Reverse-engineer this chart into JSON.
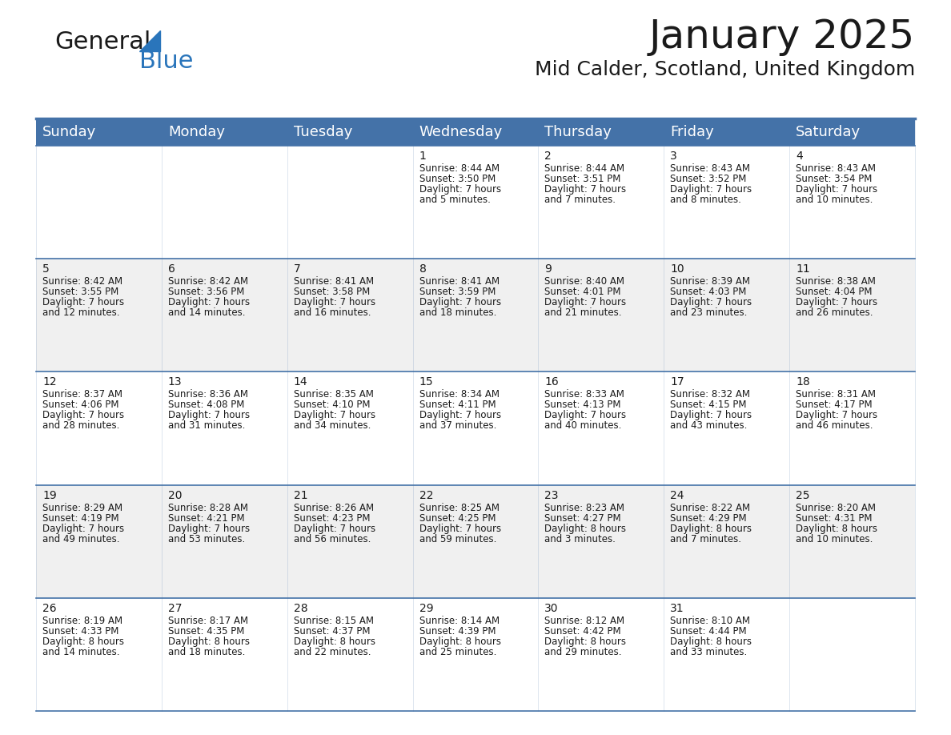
{
  "title": "January 2025",
  "subtitle": "Mid Calder, Scotland, United Kingdom",
  "header_color": "#4472a8",
  "header_text_color": "#ffffff",
  "bg_color": "#ffffff",
  "alt_row_color": "#f0f0f0",
  "grid_line_color": "#4472a8",
  "day_names": [
    "Sunday",
    "Monday",
    "Tuesday",
    "Wednesday",
    "Thursday",
    "Friday",
    "Saturday"
  ],
  "title_fontsize": 36,
  "subtitle_fontsize": 18,
  "header_fontsize": 13,
  "cell_fontsize": 8.5,
  "day_num_fontsize": 10,
  "weeks": [
    [
      {
        "day": "",
        "sunrise": "",
        "sunset": "",
        "daylight": ""
      },
      {
        "day": "",
        "sunrise": "",
        "sunset": "",
        "daylight": ""
      },
      {
        "day": "",
        "sunrise": "",
        "sunset": "",
        "daylight": ""
      },
      {
        "day": "1",
        "sunrise": "Sunrise: 8:44 AM",
        "sunset": "Sunset: 3:50 PM",
        "daylight": "Daylight: 7 hours\nand 5 minutes."
      },
      {
        "day": "2",
        "sunrise": "Sunrise: 8:44 AM",
        "sunset": "Sunset: 3:51 PM",
        "daylight": "Daylight: 7 hours\nand 7 minutes."
      },
      {
        "day": "3",
        "sunrise": "Sunrise: 8:43 AM",
        "sunset": "Sunset: 3:52 PM",
        "daylight": "Daylight: 7 hours\nand 8 minutes."
      },
      {
        "day": "4",
        "sunrise": "Sunrise: 8:43 AM",
        "sunset": "Sunset: 3:54 PM",
        "daylight": "Daylight: 7 hours\nand 10 minutes."
      }
    ],
    [
      {
        "day": "5",
        "sunrise": "Sunrise: 8:42 AM",
        "sunset": "Sunset: 3:55 PM",
        "daylight": "Daylight: 7 hours\nand 12 minutes."
      },
      {
        "day": "6",
        "sunrise": "Sunrise: 8:42 AM",
        "sunset": "Sunset: 3:56 PM",
        "daylight": "Daylight: 7 hours\nand 14 minutes."
      },
      {
        "day": "7",
        "sunrise": "Sunrise: 8:41 AM",
        "sunset": "Sunset: 3:58 PM",
        "daylight": "Daylight: 7 hours\nand 16 minutes."
      },
      {
        "day": "8",
        "sunrise": "Sunrise: 8:41 AM",
        "sunset": "Sunset: 3:59 PM",
        "daylight": "Daylight: 7 hours\nand 18 minutes."
      },
      {
        "day": "9",
        "sunrise": "Sunrise: 8:40 AM",
        "sunset": "Sunset: 4:01 PM",
        "daylight": "Daylight: 7 hours\nand 21 minutes."
      },
      {
        "day": "10",
        "sunrise": "Sunrise: 8:39 AM",
        "sunset": "Sunset: 4:03 PM",
        "daylight": "Daylight: 7 hours\nand 23 minutes."
      },
      {
        "day": "11",
        "sunrise": "Sunrise: 8:38 AM",
        "sunset": "Sunset: 4:04 PM",
        "daylight": "Daylight: 7 hours\nand 26 minutes."
      }
    ],
    [
      {
        "day": "12",
        "sunrise": "Sunrise: 8:37 AM",
        "sunset": "Sunset: 4:06 PM",
        "daylight": "Daylight: 7 hours\nand 28 minutes."
      },
      {
        "day": "13",
        "sunrise": "Sunrise: 8:36 AM",
        "sunset": "Sunset: 4:08 PM",
        "daylight": "Daylight: 7 hours\nand 31 minutes."
      },
      {
        "day": "14",
        "sunrise": "Sunrise: 8:35 AM",
        "sunset": "Sunset: 4:10 PM",
        "daylight": "Daylight: 7 hours\nand 34 minutes."
      },
      {
        "day": "15",
        "sunrise": "Sunrise: 8:34 AM",
        "sunset": "Sunset: 4:11 PM",
        "daylight": "Daylight: 7 hours\nand 37 minutes."
      },
      {
        "day": "16",
        "sunrise": "Sunrise: 8:33 AM",
        "sunset": "Sunset: 4:13 PM",
        "daylight": "Daylight: 7 hours\nand 40 minutes."
      },
      {
        "day": "17",
        "sunrise": "Sunrise: 8:32 AM",
        "sunset": "Sunset: 4:15 PM",
        "daylight": "Daylight: 7 hours\nand 43 minutes."
      },
      {
        "day": "18",
        "sunrise": "Sunrise: 8:31 AM",
        "sunset": "Sunset: 4:17 PM",
        "daylight": "Daylight: 7 hours\nand 46 minutes."
      }
    ],
    [
      {
        "day": "19",
        "sunrise": "Sunrise: 8:29 AM",
        "sunset": "Sunset: 4:19 PM",
        "daylight": "Daylight: 7 hours\nand 49 minutes."
      },
      {
        "day": "20",
        "sunrise": "Sunrise: 8:28 AM",
        "sunset": "Sunset: 4:21 PM",
        "daylight": "Daylight: 7 hours\nand 53 minutes."
      },
      {
        "day": "21",
        "sunrise": "Sunrise: 8:26 AM",
        "sunset": "Sunset: 4:23 PM",
        "daylight": "Daylight: 7 hours\nand 56 minutes."
      },
      {
        "day": "22",
        "sunrise": "Sunrise: 8:25 AM",
        "sunset": "Sunset: 4:25 PM",
        "daylight": "Daylight: 7 hours\nand 59 minutes."
      },
      {
        "day": "23",
        "sunrise": "Sunrise: 8:23 AM",
        "sunset": "Sunset: 4:27 PM",
        "daylight": "Daylight: 8 hours\nand 3 minutes."
      },
      {
        "day": "24",
        "sunrise": "Sunrise: 8:22 AM",
        "sunset": "Sunset: 4:29 PM",
        "daylight": "Daylight: 8 hours\nand 7 minutes."
      },
      {
        "day": "25",
        "sunrise": "Sunrise: 8:20 AM",
        "sunset": "Sunset: 4:31 PM",
        "daylight": "Daylight: 8 hours\nand 10 minutes."
      }
    ],
    [
      {
        "day": "26",
        "sunrise": "Sunrise: 8:19 AM",
        "sunset": "Sunset: 4:33 PM",
        "daylight": "Daylight: 8 hours\nand 14 minutes."
      },
      {
        "day": "27",
        "sunrise": "Sunrise: 8:17 AM",
        "sunset": "Sunset: 4:35 PM",
        "daylight": "Daylight: 8 hours\nand 18 minutes."
      },
      {
        "day": "28",
        "sunrise": "Sunrise: 8:15 AM",
        "sunset": "Sunset: 4:37 PM",
        "daylight": "Daylight: 8 hours\nand 22 minutes."
      },
      {
        "day": "29",
        "sunrise": "Sunrise: 8:14 AM",
        "sunset": "Sunset: 4:39 PM",
        "daylight": "Daylight: 8 hours\nand 25 minutes."
      },
      {
        "day": "30",
        "sunrise": "Sunrise: 8:12 AM",
        "sunset": "Sunset: 4:42 PM",
        "daylight": "Daylight: 8 hours\nand 29 minutes."
      },
      {
        "day": "31",
        "sunrise": "Sunrise: 8:10 AM",
        "sunset": "Sunset: 4:44 PM",
        "daylight": "Daylight: 8 hours\nand 33 minutes."
      },
      {
        "day": "",
        "sunrise": "",
        "sunset": "",
        "daylight": ""
      }
    ]
  ]
}
